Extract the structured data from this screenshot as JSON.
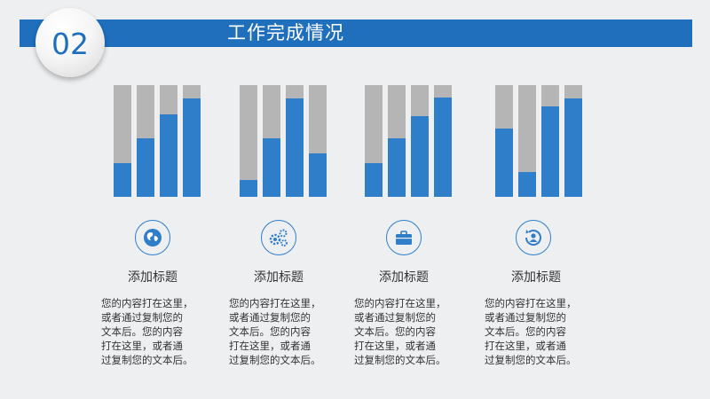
{
  "header": {
    "section_number": "02",
    "title": "工作完成情况"
  },
  "chart_data": {
    "type": "bar",
    "groups": [
      {
        "values": [
          0.3,
          0.52,
          0.74,
          0.88
        ]
      },
      {
        "values": [
          0.15,
          0.52,
          0.88,
          0.39
        ]
      },
      {
        "values": [
          0.3,
          0.52,
          0.72,
          0.89
        ]
      },
      {
        "values": [
          0.61,
          0.22,
          0.81,
          0.88
        ]
      }
    ],
    "colors": {
      "track": "#b5b5b5",
      "fill": "#2f7ec9"
    }
  },
  "items": [
    {
      "icon": "globe-icon",
      "title": "添加标题",
      "text": [
        "您的内容打在这里，",
        "或者通过复制您的",
        "文本后。您的内容",
        "打在这里，或者通",
        "过复制您的文本后。"
      ]
    },
    {
      "icon": "gears-icon",
      "title": "添加标题",
      "text": [
        "您的内容打在这里，",
        "或者通过复制您的",
        "文本后。您的内容",
        "打在这里，或者通",
        "过复制您的文本后。"
      ]
    },
    {
      "icon": "briefcase-icon",
      "title": "添加标题",
      "text": [
        "您的内容打在这里，",
        "或者通过复制您的",
        "文本后。您的内容",
        "打在这里，或者通",
        "过复制您的文本后。"
      ]
    },
    {
      "icon": "refresh-user-icon",
      "title": "添加标题",
      "text": [
        "您的内容打在这里，",
        "或者通过复制您的",
        "文本后。您的内容",
        "打在这里，或者通",
        "过复制您的文本后。"
      ]
    }
  ]
}
